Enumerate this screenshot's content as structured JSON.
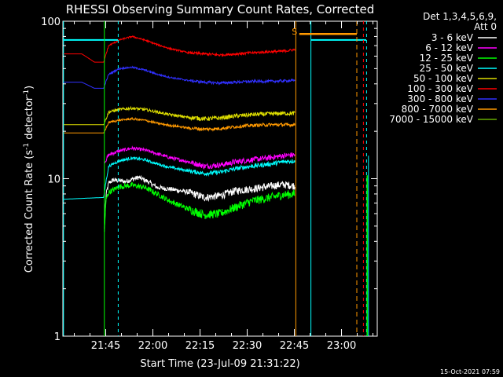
{
  "chart_data": {
    "type": "line",
    "title": "RHESSI Observing Summary Count Rates, Corrected",
    "xlabel": "Start Time (23-Jul-09 21:31:22)",
    "ylabel_main": "Corrected Count Rate (s",
    "ylabel_sup1": "-1",
    "ylabel_mid": " detector",
    "ylabel_sup2": "-1",
    "ylabel_end": ")",
    "y_scale": "log",
    "ylim": [
      1,
      100
    ],
    "y_ticks": [
      {
        "value": 1,
        "label": "1"
      },
      {
        "value": 10,
        "label": "10"
      },
      {
        "value": 100,
        "label": "100"
      }
    ],
    "xlim_minutes": [
      0,
      100
    ],
    "x_ticks": [
      {
        "minute": 13.63,
        "label": "21:45"
      },
      {
        "minute": 28.63,
        "label": "22:00"
      },
      {
        "minute": 43.63,
        "label": "22:15"
      },
      {
        "minute": 58.63,
        "label": "22:30"
      },
      {
        "minute": 73.63,
        "label": "22:45"
      },
      {
        "minute": 88.63,
        "label": "23:00"
      }
    ],
    "legend_header": [
      "Det 1,3,4,5,6,9,",
      "Att 0"
    ],
    "legend_position": "right",
    "series": [
      {
        "name": "3 - 6 keV",
        "color": "#ffffff",
        "noise": 0.035,
        "points": [
          [
            13.2,
            4.8
          ],
          [
            13.8,
            8.0
          ],
          [
            14.6,
            9.4
          ],
          [
            16,
            9.8
          ],
          [
            20,
            9.6
          ],
          [
            24,
            10.2
          ],
          [
            27,
            9.6
          ],
          [
            30,
            8.8
          ],
          [
            34,
            8.6
          ],
          [
            40,
            8.2
          ],
          [
            45,
            7.6
          ],
          [
            50,
            7.8
          ],
          [
            55,
            8.4
          ],
          [
            60,
            8.6
          ],
          [
            65,
            8.9
          ],
          [
            70,
            9.2
          ],
          [
            73.8,
            9.0
          ]
        ]
      },
      {
        "name": "6 - 12 keV",
        "color": "#ff00ff",
        "noise": 0.025,
        "points": [
          [
            13.2,
            12.5
          ],
          [
            14.6,
            14.2
          ],
          [
            18,
            15.0
          ],
          [
            22,
            15.6
          ],
          [
            26,
            15.2
          ],
          [
            30,
            14.4
          ],
          [
            34,
            13.6
          ],
          [
            40,
            12.8
          ],
          [
            45,
            12.0
          ],
          [
            50,
            12.2
          ],
          [
            55,
            12.8
          ],
          [
            60,
            13.2
          ],
          [
            66,
            13.6
          ],
          [
            70,
            14.0
          ],
          [
            73.8,
            14.2
          ]
        ]
      },
      {
        "name": "12 - 25 keV",
        "color": "#00ff00",
        "noise": 0.04,
        "points": [
          [
            13.2,
            4.6
          ],
          [
            13.8,
            7.5
          ],
          [
            14.6,
            8.2
          ],
          [
            18,
            8.9
          ],
          [
            22,
            9.1
          ],
          [
            26,
            8.8
          ],
          [
            30,
            8.0
          ],
          [
            34,
            7.2
          ],
          [
            40,
            6.4
          ],
          [
            45,
            5.9
          ],
          [
            50,
            6.0
          ],
          [
            55,
            6.6
          ],
          [
            60,
            7.2
          ],
          [
            66,
            7.6
          ],
          [
            70,
            7.9
          ],
          [
            73.8,
            8.0
          ]
        ]
      },
      {
        "name": "25 - 50 keV",
        "color": "#00ffff",
        "noise": 0.02,
        "points": [
          [
            0,
            7.4
          ],
          [
            13.0,
            7.6
          ],
          [
            14.6,
            12.0
          ],
          [
            18,
            13.0
          ],
          [
            22,
            13.5
          ],
          [
            26,
            13.2
          ],
          [
            30,
            12.4
          ],
          [
            34,
            11.8
          ],
          [
            40,
            11.2
          ],
          [
            45,
            10.8
          ],
          [
            50,
            11.0
          ],
          [
            55,
            11.6
          ],
          [
            60,
            12.0
          ],
          [
            66,
            12.4
          ],
          [
            70,
            12.8
          ],
          [
            73.8,
            13.0
          ]
        ]
      },
      {
        "name": "50 - 100 keV",
        "color": "#dddd00",
        "noise": 0.02,
        "points": [
          [
            0,
            22.0
          ],
          [
            13.0,
            22.0
          ],
          [
            14.6,
            26.5
          ],
          [
            18,
            27.5
          ],
          [
            22,
            28.0
          ],
          [
            26,
            27.5
          ],
          [
            30,
            26.5
          ],
          [
            34,
            25.5
          ],
          [
            40,
            24.5
          ],
          [
            45,
            24.0
          ],
          [
            50,
            24.3
          ],
          [
            55,
            25.0
          ],
          [
            60,
            25.5
          ],
          [
            66,
            25.8
          ],
          [
            70,
            26.0
          ],
          [
            73.8,
            26.0
          ]
        ]
      },
      {
        "name": "100 - 300 keV",
        "color": "#ff0000",
        "noise": 0.012,
        "points": [
          [
            0,
            62
          ],
          [
            6,
            62
          ],
          [
            10,
            55
          ],
          [
            13.0,
            55
          ],
          [
            14.6,
            70
          ],
          [
            18,
            76
          ],
          [
            22,
            80
          ],
          [
            26,
            76
          ],
          [
            30,
            71
          ],
          [
            34,
            67
          ],
          [
            40,
            63
          ],
          [
            45,
            62
          ],
          [
            50,
            61
          ],
          [
            55,
            62
          ],
          [
            60,
            63
          ],
          [
            66,
            64
          ],
          [
            70,
            64.5
          ],
          [
            73.8,
            66
          ]
        ]
      },
      {
        "name": "300 - 800 keV",
        "color": "#3030ff",
        "noise": 0.012,
        "points": [
          [
            0,
            41
          ],
          [
            6,
            41
          ],
          [
            10,
            37.5
          ],
          [
            13.0,
            37.5
          ],
          [
            14.6,
            46
          ],
          [
            18,
            50
          ],
          [
            22,
            51
          ],
          [
            26,
            49
          ],
          [
            30,
            46
          ],
          [
            34,
            44
          ],
          [
            40,
            42
          ],
          [
            45,
            41
          ],
          [
            50,
            40.5
          ],
          [
            55,
            41
          ],
          [
            60,
            41.5
          ],
          [
            66,
            41.5
          ],
          [
            70,
            41.8
          ],
          [
            73.8,
            42
          ]
        ]
      },
      {
        "name": "800 - 7000 keV",
        "color": "#ff9900",
        "noise": 0.015,
        "points": [
          [
            0,
            19.5
          ],
          [
            13.0,
            19.5
          ],
          [
            14.6,
            22.8
          ],
          [
            18,
            23.5
          ],
          [
            22,
            24.0
          ],
          [
            26,
            23.5
          ],
          [
            30,
            22.5
          ],
          [
            34,
            21.8
          ],
          [
            40,
            21.0
          ],
          [
            45,
            20.6
          ],
          [
            50,
            20.8
          ],
          [
            55,
            21.4
          ],
          [
            60,
            21.8
          ],
          [
            66,
            22.0
          ],
          [
            70,
            22.0
          ],
          [
            73.8,
            22.0
          ]
        ]
      },
      {
        "name": "7000 - 15000 keV",
        "color": "#66aa00",
        "noise": 0,
        "points": []
      }
    ],
    "attenuator_marker_label": "S"
  },
  "footer_date": "15-Oct-2021 07:59"
}
